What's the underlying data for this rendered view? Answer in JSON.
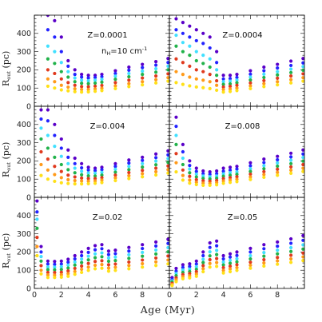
{
  "figure": {
    "xlabel": "Age (Myr)",
    "ylabel_main": "R",
    "ylabel_sub": "out",
    "ylabel_unit": " (pc)",
    "annotation_main": "n",
    "annotation_sub": "H",
    "annotation_rest": "=10 cm",
    "annotation_sup": "-1",
    "colors": [
      "#5a00c8",
      "#2323ff",
      "#41e0ff",
      "#21b24a",
      "#e03a1e",
      "#ff9a1a",
      "#ffe018"
    ]
  },
  "chart_data": [
    {
      "type": "scatter",
      "title": "Z=0.0001",
      "xlim": [
        0,
        10
      ],
      "ylim": [
        0,
        500
      ],
      "xticks": [
        0,
        2,
        4,
        6,
        8
      ],
      "yticks": [
        0,
        100,
        200,
        300,
        400
      ],
      "x": [
        1.0,
        1.5,
        2.0,
        2.5,
        3.0,
        3.5,
        4.0,
        4.5,
        5.0,
        6.0,
        7.0,
        8.0,
        9.0,
        9.9
      ],
      "series": [
        {
          "color": "#5a00c8",
          "values": [
            500,
            470,
            380,
            250,
            200,
            175,
            170,
            170,
            175,
            195,
            215,
            230,
            245,
            262
          ]
        },
        {
          "color": "#2323ff",
          "values": [
            420,
            380,
            300,
            220,
            175,
            160,
            155,
            158,
            162,
            180,
            198,
            212,
            226,
            240
          ]
        },
        {
          "color": "#41e0ff",
          "values": [
            330,
            300,
            240,
            190,
            155,
            143,
            140,
            143,
            148,
            165,
            180,
            193,
            206,
            220
          ]
        },
        {
          "color": "#21b24a",
          "values": [
            260,
            235,
            190,
            160,
            135,
            126,
            124,
            127,
            132,
            148,
            162,
            175,
            187,
            200
          ]
        },
        {
          "color": "#e03a1e",
          "values": [
            200,
            180,
            150,
            130,
            115,
            108,
            107,
            110,
            114,
            130,
            143,
            155,
            166,
            178
          ]
        },
        {
          "color": "#ff9a1a",
          "values": [
            150,
            135,
            115,
            105,
            96,
            92,
            92,
            95,
            99,
            112,
            124,
            135,
            146,
            157
          ]
        },
        {
          "color": "#ffe018",
          "values": [
            110,
            100,
            90,
            85,
            80,
            78,
            79,
            82,
            86,
            97,
            108,
            118,
            128,
            138
          ]
        }
      ]
    },
    {
      "type": "scatter",
      "title": "Z=0.0004",
      "xlim": [
        0,
        10
      ],
      "ylim": [
        0,
        500
      ],
      "xticks": [
        0,
        2,
        4,
        6,
        8
      ],
      "yticks": [
        0,
        100,
        200,
        300,
        400
      ],
      "x": [
        0.5,
        1.0,
        1.5,
        2.0,
        2.5,
        3.0,
        3.5,
        4.0,
        4.5,
        5.0,
        6.0,
        7.0,
        8.0,
        9.0,
        9.9
      ],
      "series": [
        {
          "color": "#5a00c8",
          "values": [
            480,
            460,
            440,
            420,
            400,
            380,
            300,
            170,
            170,
            175,
            195,
            215,
            230,
            248,
            262
          ]
        },
        {
          "color": "#2323ff",
          "values": [
            420,
            400,
            380,
            360,
            345,
            320,
            240,
            150,
            152,
            158,
            176,
            195,
            210,
            224,
            238
          ]
        },
        {
          "color": "#41e0ff",
          "values": [
            390,
            350,
            330,
            300,
            280,
            260,
            200,
            135,
            138,
            144,
            160,
            176,
            190,
            204,
            218
          ]
        },
        {
          "color": "#21b24a",
          "values": [
            330,
            300,
            280,
            250,
            235,
            215,
            170,
            120,
            123,
            129,
            144,
            158,
            172,
            185,
            198
          ]
        },
        {
          "color": "#e03a1e",
          "values": [
            260,
            240,
            220,
            200,
            190,
            175,
            140,
            106,
            109,
            115,
            128,
            141,
            154,
            166,
            178
          ]
        },
        {
          "color": "#ff9a1a",
          "values": [
            190,
            175,
            160,
            150,
            143,
            135,
            115,
            92,
            95,
            100,
            112,
            124,
            135,
            146,
            157
          ]
        },
        {
          "color": "#ffe018",
          "values": [
            130,
            120,
            112,
            106,
            102,
            97,
            88,
            78,
            81,
            86,
            97,
            108,
            118,
            128,
            138
          ]
        }
      ]
    },
    {
      "type": "scatter",
      "title": "Z=0.004",
      "xlim": [
        0,
        10
      ],
      "ylim": [
        0,
        500
      ],
      "xticks": [
        0,
        2,
        4,
        6,
        8
      ],
      "yticks": [
        0,
        100,
        200,
        300,
        400
      ],
      "x": [
        0.5,
        1.0,
        1.5,
        2.0,
        2.5,
        3.0,
        3.5,
        4.0,
        4.5,
        5.0,
        6.0,
        7.0,
        8.0,
        9.0,
        9.9
      ],
      "series": [
        {
          "color": "#5a00c8",
          "values": [
            480,
            480,
            400,
            320,
            260,
            215,
            185,
            165,
            160,
            165,
            185,
            205,
            220,
            238,
            255
          ]
        },
        {
          "color": "#2323ff",
          "values": [
            430,
            420,
            340,
            270,
            220,
            185,
            162,
            150,
            147,
            152,
            170,
            188,
            203,
            218,
            233
          ]
        },
        {
          "color": "#41e0ff",
          "values": [
            380,
            340,
            280,
            225,
            185,
            160,
            143,
            134,
            132,
            137,
            154,
            170,
            185,
            199,
            213
          ]
        },
        {
          "color": "#21b24a",
          "values": [
            320,
            270,
            220,
            180,
            152,
            135,
            124,
            118,
            117,
            122,
            138,
            152,
            166,
            179,
            192
          ]
        },
        {
          "color": "#e03a1e",
          "values": [
            250,
            210,
            170,
            142,
            122,
            112,
            106,
            103,
            103,
            108,
            122,
            136,
            148,
            160,
            172
          ]
        },
        {
          "color": "#ff9a1a",
          "values": [
            180,
            150,
            125,
            108,
            97,
            92,
            90,
            89,
            90,
            95,
            107,
            119,
            130,
            141,
            152
          ]
        },
        {
          "color": "#ffe018",
          "values": [
            120,
            100,
            88,
            80,
            76,
            74,
            74,
            75,
            77,
            81,
            92,
            103,
            113,
            123,
            133
          ]
        }
      ]
    },
    {
      "type": "scatter",
      "title": "Z=0.008",
      "xlim": [
        0,
        10
      ],
      "ylim": [
        0,
        500
      ],
      "xticks": [
        0,
        2,
        4,
        6,
        8
      ],
      "yticks": [
        0,
        100,
        200,
        300,
        400
      ],
      "x": [
        0.5,
        1.0,
        1.5,
        2.0,
        2.5,
        3.0,
        3.5,
        4.0,
        4.5,
        5.0,
        6.0,
        7.0,
        8.0,
        9.0,
        9.9
      ],
      "series": [
        {
          "color": "#5a00c8",
          "values": [
            440,
            290,
            200,
            160,
            145,
            140,
            145,
            160,
            165,
            170,
            190,
            210,
            225,
            242,
            260
          ]
        },
        {
          "color": "#2323ff",
          "values": [
            390,
            250,
            175,
            142,
            130,
            126,
            130,
            143,
            149,
            155,
            173,
            191,
            206,
            222,
            238
          ]
        },
        {
          "color": "#41e0ff",
          "values": [
            340,
            215,
            155,
            127,
            117,
            113,
            117,
            129,
            135,
            140,
            157,
            174,
            189,
            204,
            219
          ]
        },
        {
          "color": "#21b24a",
          "values": [
            290,
            180,
            135,
            112,
            104,
            101,
            105,
            116,
            121,
            126,
            142,
            157,
            171,
            185,
            199
          ]
        },
        {
          "color": "#e03a1e",
          "values": [
            240,
            150,
            115,
            97,
            91,
            89,
            93,
            103,
            108,
            113,
            127,
            141,
            154,
            167,
            180
          ]
        },
        {
          "color": "#ff9a1a",
          "values": [
            190,
            120,
            95,
            83,
            78,
            77,
            81,
            90,
            95,
            99,
            112,
            125,
            137,
            149,
            160
          ]
        },
        {
          "color": "#ffe018",
          "values": [
            140,
            95,
            78,
            70,
            66,
            66,
            69,
            77,
            82,
            86,
            98,
            110,
            121,
            132,
            142
          ]
        }
      ]
    },
    {
      "type": "scatter",
      "title": "Z=0.02",
      "xlim": [
        0,
        10
      ],
      "ylim": [
        0,
        500
      ],
      "xticks": [
        0,
        2,
        4,
        6,
        8
      ],
      "yticks": [
        0,
        100,
        200,
        300,
        400
      ],
      "x": [
        0.2,
        0.5,
        1.0,
        1.5,
        2.0,
        2.5,
        3.0,
        3.5,
        4.0,
        4.5,
        5.0,
        5.5,
        6.0,
        7.0,
        8.0,
        9.0,
        9.9
      ],
      "series": [
        {
          "color": "#5a00c8",
          "values": [
            480,
            230,
            150,
            148,
            150,
            160,
            180,
            200,
            220,
            235,
            240,
            205,
            210,
            225,
            240,
            255,
            270
          ]
        },
        {
          "color": "#2323ff",
          "values": [
            420,
            200,
            134,
            132,
            134,
            144,
            162,
            180,
            198,
            212,
            218,
            186,
            191,
            205,
            219,
            233,
            247
          ]
        },
        {
          "color": "#41e0ff",
          "values": [
            380,
            175,
            118,
            117,
            119,
            128,
            145,
            161,
            177,
            190,
            195,
            167,
            172,
            185,
            198,
            211,
            224
          ]
        },
        {
          "color": "#21b24a",
          "values": [
            330,
            150,
            103,
            102,
            104,
            112,
            128,
            142,
            157,
            169,
            174,
            149,
            153,
            165,
            177,
            189,
            201
          ]
        },
        {
          "color": "#e03a1e",
          "values": [
            280,
            125,
            88,
            87,
            89,
            96,
            110,
            123,
            137,
            148,
            152,
            130,
            134,
            145,
            156,
            167,
            178
          ]
        },
        {
          "color": "#ff9a1a",
          "values": [
            230,
            100,
            74,
            73,
            75,
            81,
            93,
            105,
            117,
            127,
            131,
            112,
            116,
            126,
            136,
            146,
            156
          ]
        },
        {
          "color": "#ffe018",
          "values": [
            180,
            80,
            60,
            60,
            62,
            67,
            78,
            88,
            99,
            108,
            111,
            95,
            99,
            108,
            117,
            126,
            135
          ]
        }
      ]
    },
    {
      "type": "scatter",
      "title": "Z=0.05",
      "xlim": [
        0,
        10
      ],
      "ylim": [
        0,
        500
      ],
      "xticks": [
        0,
        2,
        4,
        6,
        8
      ],
      "yticks": [
        0,
        100,
        200,
        300,
        400
      ],
      "x": [
        0.2,
        0.5,
        1.0,
        1.5,
        2.0,
        2.5,
        3.0,
        3.5,
        4.0,
        4.5,
        5.0,
        6.0,
        7.0,
        8.0,
        9.0,
        9.9
      ],
      "series": [
        {
          "color": "#5a00c8",
          "values": [
            60,
            110,
            130,
            135,
            150,
            200,
            250,
            260,
            180,
            190,
            200,
            220,
            240,
            255,
            272,
            290
          ]
        },
        {
          "color": "#2323ff",
          "values": [
            50,
            95,
            115,
            120,
            134,
            180,
            225,
            234,
            162,
            172,
            181,
            200,
            218,
            232,
            248,
            264
          ]
        },
        {
          "color": "#41e0ff",
          "values": [
            42,
            82,
            101,
            106,
            119,
            160,
            201,
            209,
            145,
            154,
            163,
            180,
            197,
            210,
            224,
            239
          ]
        },
        {
          "color": "#21b24a",
          "values": [
            35,
            70,
            88,
            93,
            105,
            142,
            179,
            186,
            129,
            138,
            146,
            162,
            177,
            190,
            203,
            216
          ]
        },
        {
          "color": "#e03a1e",
          "values": [
            28,
            58,
            76,
            81,
            92,
            125,
            158,
            164,
            114,
            122,
            130,
            144,
            158,
            170,
            182,
            194
          ]
        },
        {
          "color": "#ff9a1a",
          "values": [
            22,
            47,
            64,
            69,
            79,
            108,
            137,
            142,
            99,
            107,
            114,
            127,
            140,
            151,
            162,
            173
          ]
        },
        {
          "color": "#ffe018",
          "values": [
            16,
            37,
            53,
            58,
            67,
            92,
            117,
            121,
            85,
            92,
            99,
            111,
            123,
            133,
            143,
            153
          ]
        }
      ]
    }
  ]
}
